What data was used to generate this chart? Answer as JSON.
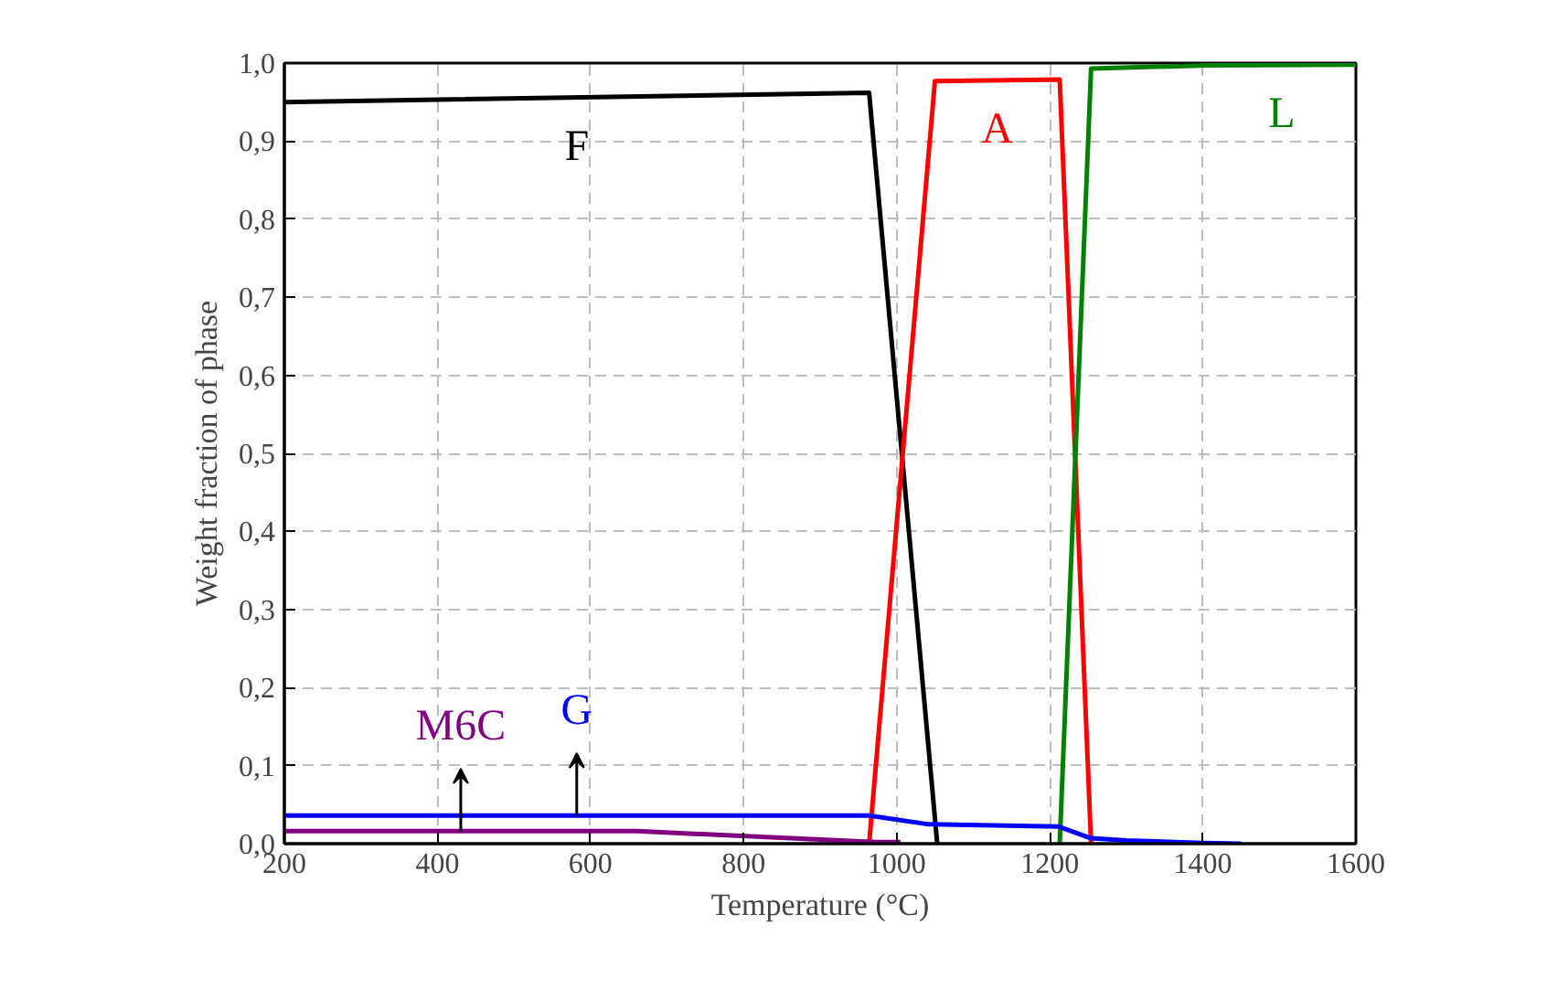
{
  "chart_data": {
    "type": "line",
    "xlabel": "Temperature (°C)",
    "ylabel": "Weight fraction of phase",
    "xlim": [
      200,
      1600
    ],
    "ylim": [
      0,
      1.0
    ],
    "xticks": [
      200,
      400,
      600,
      800,
      1000,
      1200,
      1400,
      1600
    ],
    "yticks": [
      {
        "value": 0,
        "label": "0,0"
      },
      {
        "value": 0.1,
        "label": "0,1"
      },
      {
        "value": 0.2,
        "label": "0,2"
      },
      {
        "value": 0.3,
        "label": "0,3"
      },
      {
        "value": 0.4,
        "label": "0,4"
      },
      {
        "value": 0.5,
        "label": "0,5"
      },
      {
        "value": 0.6,
        "label": "0,6"
      },
      {
        "value": 0.7,
        "label": "0,7"
      },
      {
        "value": 0.8,
        "label": "0,8"
      },
      {
        "value": 0.9,
        "label": "0,9"
      },
      {
        "value": 1.0,
        "label": "1,0"
      }
    ],
    "grid": true,
    "line_style": "solid",
    "marker": "none",
    "series": [
      {
        "name": "F",
        "color": "#000000",
        "x": [
          200,
          964,
          1053
        ],
        "values": [
          0.95,
          0.962,
          0
        ]
      },
      {
        "name": "A",
        "color": "#ff0000",
        "x": [
          964,
          1050,
          1213,
          1254
        ],
        "values": [
          0,
          0.977,
          0.979,
          0
        ]
      },
      {
        "name": "L",
        "color": "#008000",
        "x": [
          1213,
          1254,
          1406,
          1600
        ],
        "values": [
          0,
          0.993,
          0.997,
          0.998
        ]
      },
      {
        "name": "G",
        "color": "#0000ff",
        "x": [
          200,
          964,
          1040,
          1211,
          1254,
          1300,
          1400,
          1450
        ],
        "values": [
          0.036,
          0.036,
          0.025,
          0.022,
          0.007,
          0.004,
          0.001,
          0
        ]
      },
      {
        "name": "M6C",
        "color": "#800080",
        "x": [
          200,
          661,
          972,
          1005
        ],
        "values": [
          0.016,
          0.016,
          0.002,
          0.002
        ]
      }
    ]
  }
}
